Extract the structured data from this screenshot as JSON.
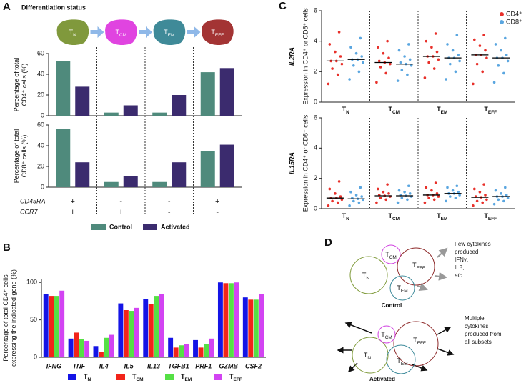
{
  "panel_labels": [
    "A",
    "B",
    "C",
    "D"
  ],
  "panel_a": {
    "title": "Differentiation status",
    "cell_colors": [
      "#80993c",
      "#e044e0",
      "#3f8a98",
      "#a33434"
    ],
    "markers": [
      {
        "name": "CD45RA",
        "values": [
          "+",
          "-",
          "-",
          "+"
        ]
      },
      {
        "name": "CCR7",
        "values": [
          "+",
          "+",
          "-",
          "-"
        ]
      }
    ]
  },
  "chart_data": [
    {
      "type": "bar",
      "ylabel": [
        "Percentage of total",
        "CD4⁺ cells (%)"
      ],
      "categories": [
        "TN",
        "TCM",
        "TEM",
        "TEFF"
      ],
      "series": [
        {
          "name": "Control",
          "color": "#4f8a7c",
          "values": [
            53,
            3,
            3,
            42
          ]
        },
        {
          "name": "Activated",
          "color": "#3b2b6e",
          "values": [
            28,
            10,
            20,
            46
          ]
        }
      ],
      "ylim": [
        0,
        60
      ],
      "yticks": [
        0,
        20,
        40,
        60
      ]
    },
    {
      "type": "bar",
      "ylabel": [
        "Percentage of total",
        "CD8⁺ cells (%)"
      ],
      "series": [
        {
          "name": "Control",
          "color": "#4f8a7c",
          "values": [
            56,
            5,
            5,
            35
          ]
        },
        {
          "name": "Activated",
          "color": "#3b2b6e",
          "values": [
            24,
            11,
            24,
            41
          ]
        }
      ],
      "ylim": [
        0,
        60
      ],
      "yticks": [
        0,
        20,
        40,
        60
      ]
    },
    {
      "type": "bar",
      "ylabel": [
        "Percentage of total CD4⁺ cells",
        "expressing the indicated gene (%)"
      ],
      "categories": [
        "IFNG",
        "TNF",
        "IL4",
        "IL5",
        "IL13",
        "TGFB1",
        "PRF1",
        "GZMB",
        "CSF2"
      ],
      "series": [
        {
          "name": "TN",
          "color": "#1414e6",
          "values": [
            84,
            25,
            15,
            72,
            78,
            26,
            23,
            100,
            80
          ]
        },
        {
          "name": "TCM",
          "color": "#f2241a",
          "values": [
            82,
            33,
            7,
            63,
            71,
            13,
            13,
            99,
            77
          ]
        },
        {
          "name": "TEM",
          "color": "#55e045",
          "values": [
            82,
            24,
            26,
            62,
            82,
            16,
            18,
            99,
            77
          ]
        },
        {
          "name": "TEFF",
          "color": "#d244f2",
          "values": [
            89,
            22,
            30,
            66,
            84,
            18,
            25,
            100,
            84
          ]
        }
      ],
      "ylim": [
        0,
        105
      ],
      "yticks": [
        0,
        50,
        100
      ]
    },
    {
      "type": "dot",
      "title": "IL2RA",
      "ylabel": [
        "Expression in CD4⁺ or CD8⁺ cells"
      ],
      "categories": [
        "TN",
        "TCM",
        "TEM",
        "TEFF"
      ],
      "series": [
        {
          "name": "CD4⁺",
          "color": "#e8302a",
          "values": [
            2.7,
            2.6,
            3.0,
            3.1
          ],
          "points": [
            [
              1.2,
              1.8,
              2.2,
              2.5,
              2.7,
              2.7,
              3.0,
              3.3,
              3.8,
              4.6
            ],
            [
              1.3,
              1.9,
              2.3,
              2.5,
              2.6,
              2.7,
              2.9,
              3.2,
              3.6,
              4.0
            ],
            [
              1.6,
              2.2,
              2.6,
              2.8,
              3.0,
              3.0,
              3.3,
              3.6,
              4.0,
              4.5
            ],
            [
              1.2,
              2.0,
              2.5,
              2.9,
              3.1,
              3.1,
              3.4,
              3.7,
              4.1,
              4.4
            ]
          ]
        },
        {
          "name": "CD8⁺",
          "color": "#5aa6e0",
          "values": [
            2.8,
            2.5,
            2.9,
            2.9
          ],
          "points": [
            [
              1.5,
              2.0,
              2.4,
              2.6,
              2.8,
              2.8,
              3.0,
              3.2,
              3.6,
              4.2
            ],
            [
              1.4,
              1.8,
              2.1,
              2.4,
              2.5,
              2.6,
              2.8,
              3.0,
              3.4,
              3.8
            ],
            [
              1.5,
              2.0,
              2.5,
              2.7,
              2.9,
              2.9,
              3.1,
              3.4,
              3.8,
              4.4
            ],
            [
              1.3,
              1.9,
              2.4,
              2.7,
              2.9,
              2.9,
              3.1,
              3.4,
              3.8,
              4.2
            ]
          ]
        }
      ],
      "ylim": [
        0,
        6
      ],
      "yticks": [
        0,
        2,
        4,
        6
      ]
    },
    {
      "type": "dot",
      "title": "IL15RA",
      "ylabel": [
        "Expression in CD4⁺ or CD8⁺ cells"
      ],
      "categories": [
        "TN",
        "TCM",
        "TEM",
        "TEFF"
      ],
      "series": [
        {
          "name": "CD4⁺",
          "color": "#e8302a",
          "values": [
            0.7,
            0.85,
            0.9,
            0.75
          ],
          "points": [
            [
              0.2,
              0.4,
              0.5,
              0.6,
              0.7,
              0.7,
              0.8,
              1.0,
              1.3,
              1.8
            ],
            [
              0.4,
              0.6,
              0.7,
              0.8,
              0.85,
              0.9,
              1.0,
              1.1,
              1.3,
              1.6
            ],
            [
              0.4,
              0.6,
              0.7,
              0.8,
              0.9,
              0.9,
              1.0,
              1.2,
              1.4,
              1.7
            ],
            [
              0.2,
              0.4,
              0.5,
              0.6,
              0.75,
              0.8,
              0.9,
              1.1,
              1.3,
              1.6
            ]
          ]
        },
        {
          "name": "CD8⁺",
          "color": "#5aa6e0",
          "values": [
            0.65,
            0.85,
            1.0,
            0.8
          ],
          "points": [
            [
              0.2,
              0.4,
              0.5,
              0.6,
              0.65,
              0.7,
              0.8,
              0.9,
              1.1,
              1.4
            ],
            [
              0.4,
              0.6,
              0.7,
              0.8,
              0.85,
              0.9,
              1.0,
              1.1,
              1.2,
              1.5
            ],
            [
              0.5,
              0.7,
              0.8,
              0.9,
              1.0,
              1.0,
              1.1,
              1.2,
              1.4,
              1.5
            ],
            [
              0.3,
              0.5,
              0.6,
              0.7,
              0.8,
              0.8,
              0.9,
              1.0,
              1.2,
              1.4
            ]
          ]
        }
      ],
      "ylim": [
        0,
        6
      ],
      "yticks": [
        0,
        2,
        4,
        6
      ]
    }
  ],
  "panel_d": {
    "cells": [
      "TCM",
      "TN",
      "TEFF",
      "TEM"
    ],
    "control": {
      "caption": "Control",
      "note": [
        "Few cytokines",
        "produced",
        "IFNγ,",
        "IL8,",
        "etc"
      ]
    },
    "activated": {
      "caption": "Activated",
      "note": [
        "Multiple",
        "cytokines",
        "produced from",
        "all subsets"
      ]
    }
  }
}
